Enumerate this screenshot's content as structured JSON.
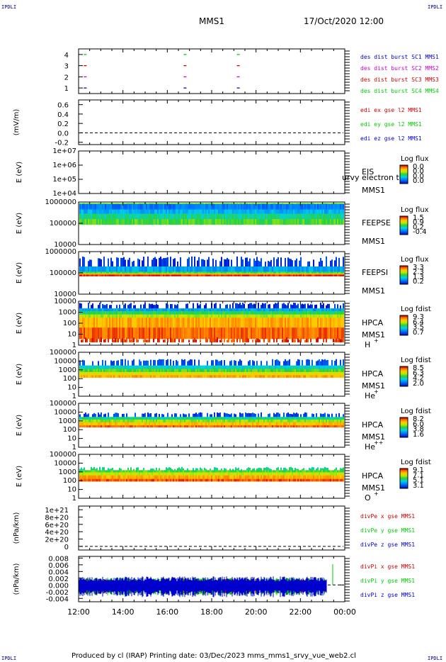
{
  "header": {
    "corner_label": "IPDLI",
    "title": "MMS1",
    "datetime": "17/Oct/2020 12:00"
  },
  "footer": {
    "text": "Produced by cl (IRAP)   Printing date: 03/Dec/2023   mms_mms1_srvy_vue_web2.cl"
  },
  "colors": {
    "mms1": "#0000cc",
    "mms2": "#cc00cc",
    "mms3": "#cc0000",
    "mms4": "#00cc00",
    "background": "#ffffff",
    "axis": "#000000"
  },
  "chart_data": [
    {
      "type": "scatter",
      "panel": "burst",
      "x_range": [
        12,
        24
      ],
      "ylim": [
        0.5,
        4.5
      ],
      "ticks": [
        "1",
        "2",
        "3",
        "4"
      ],
      "series": [
        {
          "name": "des dist burst SC1 MMS1",
          "color": "#0000cc",
          "y": 1,
          "x": [
            12.3,
            16.8,
            19.2
          ]
        },
        {
          "name": "des dist burst SC2 MMS2",
          "color": "#cc00cc",
          "y": 2,
          "x": [
            12.3,
            16.8,
            19.2
          ]
        },
        {
          "name": "des dist burst SC3 MMS3",
          "color": "#cc0000",
          "y": 3,
          "x": [
            12.3,
            16.8,
            19.2
          ]
        },
        {
          "name": "des dist burst SC4 MMS4",
          "color": "#00cc00",
          "y": 4,
          "x": [
            12.3,
            16.8,
            19.2
          ]
        }
      ]
    },
    {
      "type": "line",
      "panel": "edp",
      "ylabel": "(mV/m)",
      "ylim": [
        -0.25,
        0.7
      ],
      "ticks": [
        "0.6",
        "0.4",
        "0.2",
        "0.0",
        "-0.2"
      ],
      "tick_values": [
        0.6,
        0.4,
        0.2,
        0.0,
        -0.2
      ],
      "zero_line": 0,
      "series": [
        {
          "name": "edi ex gse l2 MMS1",
          "color": "#cc0000"
        },
        {
          "name": "edi ey gse l2 MMS1",
          "color": "#00cc00"
        },
        {
          "name": "edi ez gse l2 MMS1",
          "color": "#0000cc"
        }
      ]
    },
    {
      "type": "heatmap",
      "panel": "eis",
      "ylabel": "E (eV)",
      "ticks": [
        "1e+07",
        "1e+06",
        "1e+05",
        "1e+04"
      ],
      "ylim_log": [
        4,
        7
      ],
      "instrument": "EIS",
      "extra_label": "urvy electron to",
      "spacecraft": "MMS1",
      "colorbar": {
        "title": "Log flux",
        "ticks": [
          "0.0",
          "0.0",
          "0.0",
          "0.0"
        ]
      },
      "bands": []
    },
    {
      "type": "heatmap",
      "panel": "feeps_e",
      "ylabel": "E (eV)",
      "ticks": [
        "1000000",
        "100000",
        "10000"
      ],
      "ylim_log": [
        4,
        6
      ],
      "instrument": "FEEPSE",
      "spacecraft": "MMS1",
      "colorbar": {
        "title": "Log flux",
        "ticks": [
          "1.5",
          "0.9",
          "0.2",
          "-0.4"
        ]
      },
      "bands": [
        {
          "from": 5.9,
          "to": 5.95,
          "level": 0.55
        },
        {
          "from": 5.65,
          "to": 5.9,
          "level": 0.22
        },
        {
          "from": 5.45,
          "to": 5.65,
          "level": 0.32
        },
        {
          "from": 5.2,
          "to": 5.45,
          "level": 0.45
        },
        {
          "from": 4.95,
          "to": 5.2,
          "level": 0.55
        }
      ]
    },
    {
      "type": "heatmap",
      "panel": "feeps_i",
      "ylabel": "E (eV)",
      "ticks": [
        "1000000",
        "100000",
        "10000"
      ],
      "ylim_log": [
        4,
        6
      ],
      "instrument": "FEEPSI",
      "spacecraft": "MMS1",
      "colorbar": {
        "title": "Log flux",
        "ticks": [
          "3.3",
          "2.3",
          "1.3",
          "0.2"
        ]
      },
      "bands": [
        {
          "from": 5.3,
          "to": 5.65,
          "level": 0.1,
          "speckle": true
        },
        {
          "from": 5.05,
          "to": 5.3,
          "level": 0.3
        },
        {
          "from": 4.97,
          "to": 5.05,
          "level": 0.55
        },
        {
          "from": 4.92,
          "to": 4.97,
          "level": 0.75
        },
        {
          "from": 4.86,
          "to": 4.92,
          "level": 0.98
        }
      ]
    },
    {
      "type": "heatmap",
      "panel": "hpca_h",
      "ylabel": "E (eV)",
      "ticks": [
        "10000",
        "1000",
        "100",
        "10",
        "1"
      ],
      "ylim_log": [
        0,
        4
      ],
      "instrument": "HPCA",
      "spacecraft": "MMS1",
      "species": "H",
      "species_charge": "+",
      "colorbar": {
        "title": "Log fdist",
        "ticks": [
          "9.3",
          "6.4",
          "3.5",
          "0.7"
        ]
      },
      "bands": [
        {
          "from": 3.35,
          "to": 3.75,
          "level": 0.08,
          "speckle": true
        },
        {
          "from": 3.1,
          "to": 3.35,
          "level": 0.3
        },
        {
          "from": 2.8,
          "to": 3.1,
          "level": 0.5
        },
        {
          "from": 2.5,
          "to": 2.8,
          "level": 0.65
        },
        {
          "from": 1.6,
          "to": 2.5,
          "level": 0.82
        },
        {
          "from": 0.6,
          "to": 1.6,
          "level": 0.9
        },
        {
          "from": 0.3,
          "to": 0.6,
          "level": 0.95,
          "speckle": true
        }
      ]
    },
    {
      "type": "heatmap",
      "panel": "hpca_he",
      "ylabel": "E (eV)",
      "ticks": [
        "100000",
        "10000",
        "1000",
        "100",
        "10",
        "1"
      ],
      "ylim_log": [
        0,
        5
      ],
      "instrument": "HPCA",
      "spacecraft": "MMS1",
      "species": "He",
      "species_charge": "+",
      "colorbar": {
        "title": "Log fdist",
        "ticks": [
          "8.5",
          "6.3",
          "4.2",
          "2.0"
        ]
      },
      "bands": [
        {
          "from": 3.5,
          "to": 4.1,
          "level": 0.15,
          "speckle": true
        },
        {
          "from": 3.1,
          "to": 3.5,
          "level": 0.4
        },
        {
          "from": 2.75,
          "to": 3.1,
          "level": 0.55
        },
        {
          "from": 2.4,
          "to": 2.75,
          "level": 0.72
        },
        {
          "from": 2.15,
          "to": 2.4,
          "level": 0.82
        }
      ]
    },
    {
      "type": "heatmap",
      "panel": "hpca_hepp",
      "ylabel": "E (eV)",
      "ticks": [
        "100000",
        "10000",
        "1000",
        "100",
        "10",
        "1"
      ],
      "ylim_log": [
        0,
        5
      ],
      "instrument": "HPCA",
      "spacecraft": "MMS1",
      "species": "He",
      "species_charge": "++",
      "colorbar": {
        "title": "Log fdist",
        "ticks": [
          "8.2",
          "6.0",
          "3.8",
          "1.6"
        ]
      },
      "bands": [
        {
          "from": 3.45,
          "to": 3.85,
          "level": 0.12,
          "speckle": true
        },
        {
          "from": 3.15,
          "to": 3.45,
          "level": 0.45
        },
        {
          "from": 2.85,
          "to": 3.15,
          "level": 0.62
        },
        {
          "from": 2.5,
          "to": 2.85,
          "level": 0.78
        },
        {
          "from": 2.3,
          "to": 2.5,
          "level": 0.9
        }
      ]
    },
    {
      "type": "heatmap",
      "panel": "hpca_o",
      "ylabel": "E (eV)",
      "ticks": [
        "100000",
        "10000",
        "1000",
        "100",
        "10",
        "1"
      ],
      "ylim_log": [
        0,
        5
      ],
      "instrument": "HPCA",
      "spacecraft": "MMS1",
      "species": "O",
      "species_charge": "+",
      "colorbar": {
        "title": "Log fdist",
        "ticks": [
          "9.1",
          "7.1",
          "5.1",
          "3.1"
        ]
      },
      "bands": [
        {
          "from": 3.2,
          "to": 3.45,
          "level": 0.45,
          "speckle": true
        },
        {
          "from": 2.95,
          "to": 3.2,
          "level": 0.55
        },
        {
          "from": 2.6,
          "to": 2.95,
          "level": 0.68
        },
        {
          "from": 2.2,
          "to": 2.6,
          "level": 0.82
        },
        {
          "from": 1.95,
          "to": 2.2,
          "level": 0.92
        }
      ]
    },
    {
      "type": "line",
      "panel": "divpe",
      "ylabel": "(nPa/km)",
      "ylim": [
        -1e+20,
        1.1e+21
      ],
      "ticks": [
        "1e+21",
        "8e+20",
        "6e+20",
        "4e+20",
        "2e+20",
        "0"
      ],
      "tick_values": [
        1e+21,
        8e+20,
        6e+20,
        4e+20,
        2e+20,
        0
      ],
      "zero_line": 0,
      "series": [
        {
          "name": "divPe x gse MMS1",
          "color": "#cc0000"
        },
        {
          "name": "divPe y gse MMS1",
          "color": "#00cc00"
        },
        {
          "name": "divPe z gse MMS1",
          "color": "#0000cc"
        }
      ]
    },
    {
      "type": "line",
      "panel": "divpi",
      "ylabel": "(nPa/km)",
      "ylim": [
        -0.005,
        0.0085
      ],
      "ticks": [
        "0.008",
        "0.006",
        "0.004",
        "0.002",
        "0.000",
        "-0.002",
        "-0.004"
      ],
      "tick_values": [
        0.008,
        0.006,
        0.004,
        0.002,
        0.0,
        -0.002,
        -0.004
      ],
      "zero_line": 0,
      "series": [
        {
          "name": "divPi x gse MMS1",
          "color": "#cc0000",
          "amplitude": 0.0018
        },
        {
          "name": "divPi y gse MMS1",
          "color": "#00cc00",
          "amplitude": 0.0022
        },
        {
          "name": "divPi z gse MMS1",
          "color": "#0000cc",
          "amplitude": 0.0026
        }
      ],
      "xlabel_ticks": [
        "12:00",
        "14:00",
        "16:00",
        "18:00",
        "20:00",
        "22:00",
        "00:00"
      ],
      "x_range": [
        12,
        24
      ],
      "data_end": 23.2
    }
  ]
}
